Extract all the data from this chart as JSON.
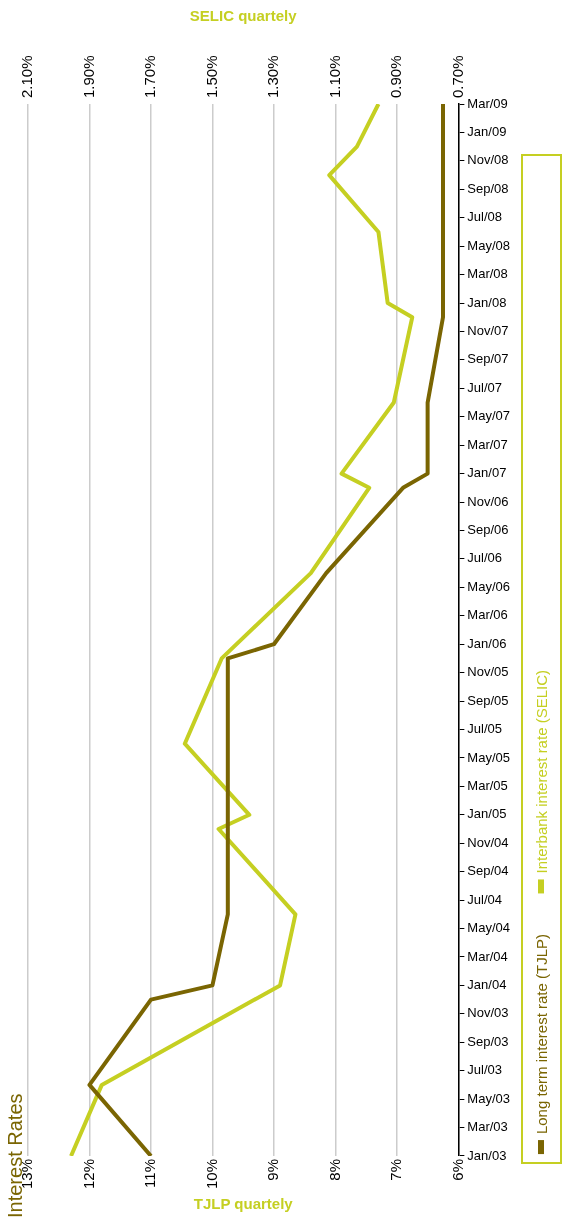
{
  "chart_data": {
    "type": "line",
    "orientation": "horizontal",
    "title": "Interest Rates",
    "xlabel": "TJLP quartely",
    "x2label": "SELIC quartely",
    "ylim": [
      "2003-01",
      "2009-03"
    ],
    "yticks": [
      {
        "value": "2003-01",
        "label": "Jan/03"
      },
      {
        "value": "2003-03",
        "label": "Mar/03"
      },
      {
        "value": "2003-05",
        "label": "May/03"
      },
      {
        "value": "2003-07",
        "label": "Jul/03"
      },
      {
        "value": "2003-09",
        "label": "Sep/03"
      },
      {
        "value": "2003-11",
        "label": "Nov/03"
      },
      {
        "value": "2004-01",
        "label": "Jan/04"
      },
      {
        "value": "2004-03",
        "label": "Mar/04"
      },
      {
        "value": "2004-05",
        "label": "May/04"
      },
      {
        "value": "2004-07",
        "label": "Jul/04"
      },
      {
        "value": "2004-09",
        "label": "Sep/04"
      },
      {
        "value": "2004-11",
        "label": "Nov/04"
      },
      {
        "value": "2005-01",
        "label": "Jan/05"
      },
      {
        "value": "2005-03",
        "label": "Mar/05"
      },
      {
        "value": "2005-05",
        "label": "May/05"
      },
      {
        "value": "2005-07",
        "label": "Jul/05"
      },
      {
        "value": "2005-09",
        "label": "Sep/05"
      },
      {
        "value": "2005-11",
        "label": "Nov/05"
      },
      {
        "value": "2006-01",
        "label": "Jan/06"
      },
      {
        "value": "2006-03",
        "label": "Mar/06"
      },
      {
        "value": "2006-05",
        "label": "May/06"
      },
      {
        "value": "2006-07",
        "label": "Jul/06"
      },
      {
        "value": "2006-09",
        "label": "Sep/06"
      },
      {
        "value": "2006-11",
        "label": "Nov/06"
      },
      {
        "value": "2007-01",
        "label": "Jan/07"
      },
      {
        "value": "2007-03",
        "label": "Mar/07"
      },
      {
        "value": "2007-05",
        "label": "May/07"
      },
      {
        "value": "2007-07",
        "label": "Jul/07"
      },
      {
        "value": "2007-09",
        "label": "Sep/07"
      },
      {
        "value": "2007-11",
        "label": "Nov/07"
      },
      {
        "value": "2008-01",
        "label": "Jan/08"
      },
      {
        "value": "2008-03",
        "label": "Mar/08"
      },
      {
        "value": "2008-05",
        "label": "May/08"
      },
      {
        "value": "2008-07",
        "label": "Jul/08"
      },
      {
        "value": "2008-09",
        "label": "Sep/08"
      },
      {
        "value": "2008-11",
        "label": "Nov/08"
      },
      {
        "value": "2009-01",
        "label": "Jan/09"
      },
      {
        "value": "2009-03",
        "label": "Mar/09"
      }
    ],
    "xlim": [
      13,
      6
    ],
    "xticks": [
      {
        "value": 13,
        "label": "13%"
      },
      {
        "value": 12,
        "label": "12%"
      },
      {
        "value": 11,
        "label": "11%"
      },
      {
        "value": 10,
        "label": "10%"
      },
      {
        "value": 9,
        "label": "9%"
      },
      {
        "value": 8,
        "label": "8%"
      },
      {
        "value": 7,
        "label": "7%"
      },
      {
        "value": 6,
        "label": "6%"
      }
    ],
    "x2lim": [
      2.1,
      0.7
    ],
    "x2ticks": [
      {
        "value": 2.1,
        "label": "2.10%"
      },
      {
        "value": 1.9,
        "label": "1.90%"
      },
      {
        "value": 1.7,
        "label": "1.70%"
      },
      {
        "value": 1.5,
        "label": "1.50%"
      },
      {
        "value": 1.3,
        "label": "1.30%"
      },
      {
        "value": 1.1,
        "label": "1.10%"
      },
      {
        "value": 0.9,
        "label": "0.90%"
      },
      {
        "value": 0.7,
        "label": "0.70%"
      }
    ],
    "series": [
      {
        "name": "Long term interest rate (TJLP)",
        "color": "#7a6502",
        "x": [
          "2003-01",
          "2003-06",
          "2003-12",
          "2004-01",
          "2004-06",
          "2005-12",
          "2006-01",
          "2006-06",
          "2006-12",
          "2007-01",
          "2007-06",
          "2007-12",
          "2009-03"
        ],
        "values": [
          11,
          12,
          11,
          10,
          9.75,
          9.75,
          9,
          8.15,
          6.9,
          6.5,
          6.5,
          6.25,
          6.25
        ]
      },
      {
        "name": "Interbank interest rate (SELIC)",
        "color": "#c5cf22",
        "axis": "x2",
        "x": [
          "2003-01",
          "2003-06",
          "2004-01",
          "2004-06",
          "2004-12",
          "2005-01",
          "2005-06",
          "2005-12",
          "2006-06",
          "2006-12",
          "2007-01",
          "2007-06",
          "2007-12",
          "2008-01",
          "2008-06",
          "2008-10",
          "2008-12",
          "2009-03"
        ],
        "values": [
          1.96,
          1.86,
          1.28,
          1.23,
          1.48,
          1.38,
          1.59,
          1.47,
          1.18,
          0.99,
          1.08,
          0.91,
          0.85,
          0.93,
          0.96,
          1.12,
          1.03,
          0.96
        ]
      }
    ],
    "grid": "x",
    "legend": "right",
    "marker": "none",
    "line_style": "solid"
  }
}
